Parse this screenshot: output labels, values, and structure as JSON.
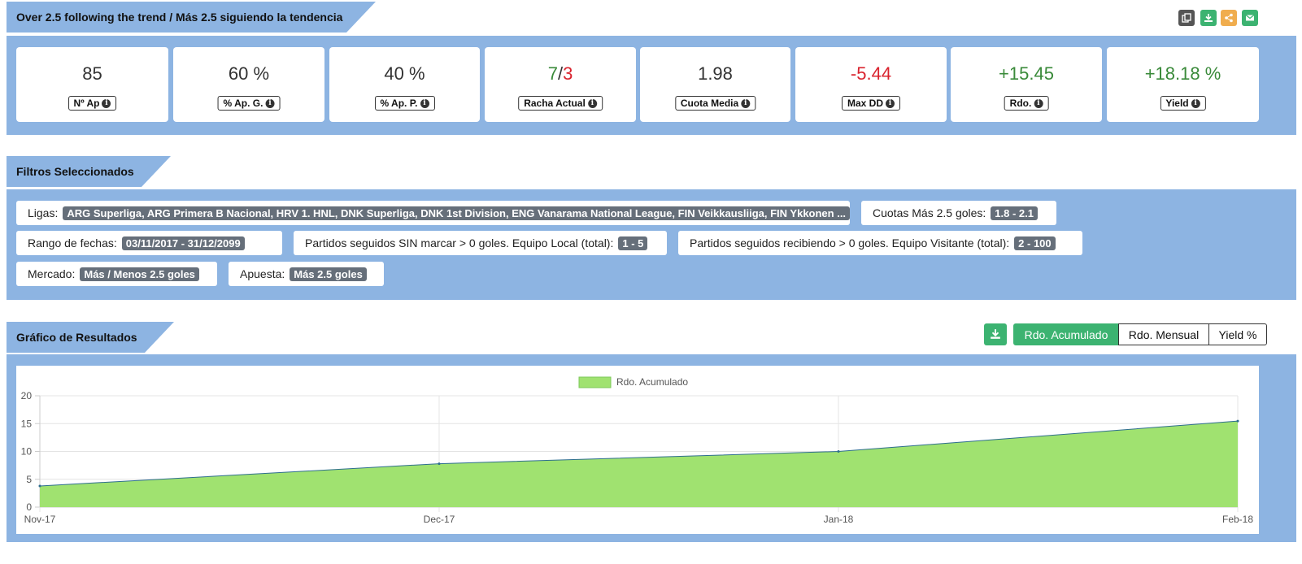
{
  "header": {
    "title": "Over 2.5 following the trend / Más 2.5 siguiendo la tendencia",
    "actions": [
      {
        "icon": "copy-icon",
        "color": "#555555"
      },
      {
        "icon": "download-icon",
        "color": "#3cb371"
      },
      {
        "icon": "share-icon",
        "color": "#f0ad4e"
      },
      {
        "icon": "email-icon",
        "color": "#3cb371"
      }
    ]
  },
  "stats": [
    {
      "value": "85",
      "label": "Nº Ap",
      "color": "#333333"
    },
    {
      "value": "60 %",
      "label": "% Ap. G.",
      "color": "#333333"
    },
    {
      "value": "40 %",
      "label": "% Ap. P.",
      "color": "#333333"
    },
    {
      "value_a": "7",
      "sep": "/",
      "value_b": "3",
      "label": "Racha Actual",
      "color_a": "#3a8a3a",
      "color_b": "#d9232e"
    },
    {
      "value": "1.98",
      "label": "Cuota Media",
      "color": "#333333"
    },
    {
      "value": "-5.44",
      "label": "Max DD",
      "color": "#d9232e"
    },
    {
      "value": "+15.45",
      "label": "Rdo.",
      "color": "#3a8a3a"
    },
    {
      "value": "+18.18 %",
      "label": "Yield",
      "color": "#3a8a3a"
    }
  ],
  "filters": {
    "title": "Filtros Seleccionados",
    "ligas_label": "Ligas:",
    "ligas_value": "ARG Superliga, ARG Primera B Nacional, HRV 1. HNL, DNK Superliga, DNK 1st Division, ENG Vanarama National League, FIN Veikkausliiga, FIN Ykkonen ...",
    "cuotas_label": "Cuotas Más 2.5 goles:",
    "cuotas_value": "1.8 - 2.1",
    "rango_label": "Rango de fechas:",
    "rango_value": "03/11/2017 - 31/12/2099",
    "local_label": "Partidos seguidos SIN marcar > 0 goles. Equipo Local (total):",
    "local_value": "1 - 5",
    "visit_label": "Partidos seguidos recibiendo > 0 goles. Equipo Visitante (total):",
    "visit_value": "2 - 100",
    "mercado_label": "Mercado:",
    "mercado_value": "Más / Menos 2.5 goles",
    "apuesta_label": "Apuesta:",
    "apuesta_value": "Más 2.5 goles"
  },
  "results": {
    "title": "Gráfico de Resultados",
    "download_icon": "download-icon",
    "tabs": [
      "Rdo. Acumulado",
      "Rdo. Mensual",
      "Yield %"
    ],
    "active_tab": "Rdo. Acumulado",
    "accent": "#3cb371"
  },
  "chart_data": {
    "type": "area",
    "x": [
      "Nov-17",
      "Dec-17",
      "Jan-18",
      "Feb-18"
    ],
    "series": [
      {
        "name": "Rdo. Acumulado",
        "values": [
          3.8,
          7.8,
          10.0,
          15.45
        ],
        "color": "#a0e270"
      }
    ],
    "ylim": [
      0,
      20
    ],
    "yticks": [
      0,
      5,
      10,
      15,
      20
    ],
    "legend": "top-center",
    "grid": true
  }
}
